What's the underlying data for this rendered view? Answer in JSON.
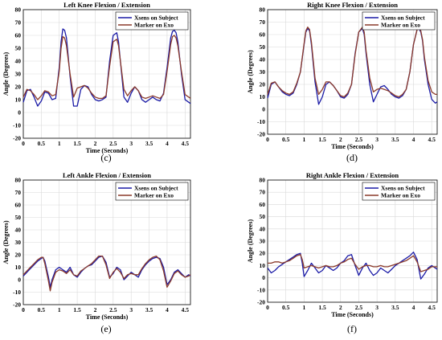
{
  "chart_data": [
    {
      "type": "line",
      "title": "Left Knee Flexion / Extension",
      "xlabel": "Time (Seconds)",
      "ylabel": "Angle (Degrees)",
      "panel": "(c)",
      "xlim": [
        0,
        4.65
      ],
      "ylim": [
        -20,
        80
      ],
      "xticks": [
        "0",
        "0.5",
        "1",
        "1.5",
        "2",
        "2.5",
        "3",
        "3.5",
        "4",
        "4.5"
      ],
      "yticks": [
        "-20",
        "-10",
        "0",
        "10",
        "20",
        "30",
        "40",
        "50",
        "60",
        "70",
        "80"
      ],
      "grid": true,
      "legend": "top-right",
      "series": [
        {
          "name": "Xsens on Subject",
          "color": "#1a1aa6",
          "x": [
            0,
            0.1,
            0.2,
            0.3,
            0.4,
            0.5,
            0.6,
            0.7,
            0.8,
            0.9,
            1.0,
            1.05,
            1.1,
            1.15,
            1.2,
            1.3,
            1.4,
            1.5,
            1.6,
            1.7,
            1.8,
            1.9,
            2.0,
            2.1,
            2.2,
            2.3,
            2.4,
            2.5,
            2.6,
            2.65,
            2.7,
            2.8,
            2.9,
            3.0,
            3.1,
            3.2,
            3.3,
            3.4,
            3.5,
            3.6,
            3.7,
            3.8,
            3.9,
            4.0,
            4.1,
            4.15,
            4.2,
            4.25,
            4.3,
            4.4,
            4.5,
            4.6,
            4.65
          ],
          "y": [
            8,
            17,
            18,
            12,
            5,
            9,
            16,
            15,
            10,
            11,
            35,
            55,
            65,
            64,
            58,
            28,
            5,
            5,
            18,
            21,
            20,
            14,
            10,
            9,
            10,
            12,
            40,
            60,
            62,
            55,
            40,
            12,
            8,
            15,
            20,
            17,
            10,
            8,
            10,
            12,
            10,
            9,
            15,
            35,
            58,
            63,
            64,
            62,
            55,
            30,
            10,
            8,
            7
          ]
        },
        {
          "name": "Marker on Exo",
          "color": "#8b3a2a",
          "x": [
            0,
            0.1,
            0.2,
            0.3,
            0.4,
            0.5,
            0.6,
            0.7,
            0.8,
            0.9,
            1.0,
            1.05,
            1.1,
            1.15,
            1.2,
            1.3,
            1.4,
            1.5,
            1.6,
            1.7,
            1.8,
            1.9,
            2.0,
            2.1,
            2.2,
            2.3,
            2.4,
            2.5,
            2.6,
            2.65,
            2.7,
            2.8,
            2.9,
            3.0,
            3.1,
            3.2,
            3.3,
            3.4,
            3.5,
            3.6,
            3.7,
            3.8,
            3.9,
            4.0,
            4.1,
            4.15,
            4.2,
            4.25,
            4.3,
            4.4,
            4.5,
            4.6,
            4.65
          ],
          "y": [
            12,
            18,
            17,
            14,
            10,
            13,
            17,
            16,
            13,
            14,
            32,
            50,
            59,
            58,
            52,
            30,
            12,
            19,
            20,
            21,
            19,
            15,
            12,
            11,
            11,
            13,
            36,
            55,
            57,
            52,
            40,
            18,
            13,
            17,
            20,
            17,
            12,
            11,
            12,
            13,
            12,
            11,
            14,
            32,
            53,
            59,
            60,
            58,
            52,
            32,
            14,
            12,
            11
          ]
        }
      ]
    },
    {
      "type": "line",
      "title": "Right Knee Flexion / Extension",
      "xlabel": "Time (Seconds)",
      "ylabel": "Angle (Degrees)",
      "panel": "(d)",
      "xlim": [
        0,
        4.65
      ],
      "ylim": [
        -20,
        80
      ],
      "xticks": [
        "0",
        "0.5",
        "1",
        "1.5",
        "2",
        "2.5",
        "3",
        "3.5",
        "4",
        "4.5"
      ],
      "yticks": [
        "-20",
        "-10",
        "0",
        "10",
        "20",
        "30",
        "40",
        "50",
        "60",
        "70",
        "80"
      ],
      "grid": true,
      "legend": "top-right",
      "series": [
        {
          "name": "Xsens on Subject",
          "color": "#1a1aa6",
          "x": [
            0,
            0.1,
            0.2,
            0.3,
            0.4,
            0.5,
            0.6,
            0.7,
            0.8,
            0.9,
            1.0,
            1.05,
            1.1,
            1.15,
            1.2,
            1.3,
            1.4,
            1.5,
            1.6,
            1.7,
            1.8,
            1.9,
            2.0,
            2.1,
            2.2,
            2.3,
            2.4,
            2.5,
            2.6,
            2.65,
            2.7,
            2.8,
            2.9,
            3.0,
            3.1,
            3.2,
            3.3,
            3.4,
            3.5,
            3.6,
            3.7,
            3.8,
            3.9,
            4.0,
            4.1,
            4.15,
            4.2,
            4.25,
            4.3,
            4.4,
            4.5,
            4.6,
            4.65
          ],
          "y": [
            9,
            20,
            22,
            18,
            14,
            12,
            11,
            13,
            20,
            30,
            52,
            62,
            65,
            63,
            52,
            22,
            4,
            10,
            20,
            22,
            19,
            15,
            10,
            9,
            12,
            20,
            45,
            62,
            65,
            60,
            45,
            20,
            6,
            12,
            18,
            19,
            16,
            12,
            10,
            9,
            11,
            16,
            30,
            52,
            64,
            65,
            62,
            55,
            40,
            20,
            8,
            5,
            6
          ]
        },
        {
          "name": "Marker on Exo",
          "color": "#8b3a2a",
          "x": [
            0,
            0.1,
            0.2,
            0.3,
            0.4,
            0.5,
            0.6,
            0.7,
            0.8,
            0.9,
            1.0,
            1.05,
            1.1,
            1.15,
            1.2,
            1.3,
            1.4,
            1.5,
            1.6,
            1.7,
            1.8,
            1.9,
            2.0,
            2.1,
            2.2,
            2.3,
            2.4,
            2.5,
            2.6,
            2.65,
            2.7,
            2.8,
            2.9,
            3.0,
            3.1,
            3.2,
            3.3,
            3.4,
            3.5,
            3.6,
            3.7,
            3.8,
            3.9,
            4.0,
            4.1,
            4.15,
            4.2,
            4.25,
            4.3,
            4.4,
            4.5,
            4.6,
            4.65
          ],
          "y": [
            12,
            21,
            22,
            18,
            15,
            13,
            12,
            14,
            21,
            30,
            53,
            63,
            66,
            64,
            54,
            25,
            12,
            16,
            22,
            22,
            19,
            15,
            11,
            10,
            13,
            20,
            44,
            62,
            66,
            62,
            47,
            25,
            14,
            16,
            17,
            16,
            15,
            13,
            11,
            10,
            12,
            16,
            30,
            52,
            64,
            66,
            63,
            56,
            42,
            23,
            14,
            12,
            12
          ]
        }
      ]
    },
    {
      "type": "line",
      "title": "Left Ankle Flexion / Extension",
      "xlabel": "Time (Seconds)",
      "ylabel": "Angle (Degrees)",
      "panel": "(e)",
      "xlim": [
        0,
        4.65
      ],
      "ylim": [
        -20,
        80
      ],
      "xticks": [
        "0",
        "0.5",
        "1",
        "1.5",
        "2",
        "2.5",
        "3",
        "3.5",
        "4",
        "4.5"
      ],
      "yticks": [
        "-20",
        "-10",
        "0",
        "10",
        "20",
        "30",
        "40",
        "50",
        "60",
        "70",
        "80"
      ],
      "grid": true,
      "legend": "top-right",
      "series": [
        {
          "name": "Xsens on Subject",
          "color": "#1a1aa6",
          "x": [
            0,
            0.1,
            0.2,
            0.3,
            0.4,
            0.5,
            0.55,
            0.6,
            0.7,
            0.75,
            0.8,
            0.9,
            1.0,
            1.1,
            1.2,
            1.3,
            1.4,
            1.5,
            1.6,
            1.7,
            1.8,
            1.9,
            2.0,
            2.1,
            2.2,
            2.3,
            2.4,
            2.5,
            2.6,
            2.7,
            2.8,
            2.9,
            3.0,
            3.1,
            3.2,
            3.3,
            3.4,
            3.5,
            3.6,
            3.7,
            3.8,
            3.9,
            4.0,
            4.1,
            4.2,
            4.3,
            4.4,
            4.5,
            4.6,
            4.65
          ],
          "y": [
            3,
            6,
            9,
            12,
            15,
            17,
            18,
            15,
            2,
            -6,
            0,
            8,
            10,
            8,
            6,
            10,
            4,
            2,
            6,
            9,
            11,
            12,
            15,
            18,
            19,
            14,
            2,
            5,
            10,
            8,
            0,
            3,
            6,
            4,
            2,
            8,
            12,
            15,
            17,
            18,
            17,
            10,
            -4,
            0,
            6,
            8,
            5,
            2,
            4,
            3
          ]
        },
        {
          "name": "Marker on Exo",
          "color": "#8b3a2a",
          "x": [
            0,
            0.1,
            0.2,
            0.3,
            0.4,
            0.5,
            0.55,
            0.6,
            0.7,
            0.75,
            0.8,
            0.9,
            1.0,
            1.1,
            1.2,
            1.3,
            1.4,
            1.5,
            1.6,
            1.7,
            1.8,
            1.9,
            2.0,
            2.1,
            2.2,
            2.3,
            2.4,
            2.5,
            2.6,
            2.7,
            2.8,
            2.9,
            3.0,
            3.1,
            3.2,
            3.3,
            3.4,
            3.5,
            3.6,
            3.7,
            3.8,
            3.9,
            4.0,
            4.1,
            4.2,
            4.3,
            4.4,
            4.5,
            4.6,
            4.65
          ],
          "y": [
            4,
            7,
            10,
            13,
            16,
            18,
            18,
            13,
            -1,
            -9,
            -2,
            6,
            8,
            7,
            5,
            8,
            4,
            3,
            7,
            9,
            11,
            13,
            16,
            19,
            19,
            12,
            1,
            6,
            9,
            6,
            1,
            4,
            5,
            4,
            4,
            9,
            13,
            16,
            18,
            19,
            16,
            7,
            -6,
            -1,
            5,
            7,
            4,
            2,
            3,
            4
          ]
        }
      ]
    },
    {
      "type": "line",
      "title": "Right Ankle Flexion / Extension",
      "xlabel": "Time (Seconds)",
      "ylabel": "Angle (Degrees)",
      "panel": "(f)",
      "xlim": [
        0,
        4.65
      ],
      "ylim": [
        -20,
        80
      ],
      "xticks": [
        "0",
        "0.5",
        "1",
        "1.5",
        "2",
        "2.5",
        "3",
        "3.5",
        "4",
        "4.5"
      ],
      "yticks": [
        "-20",
        "-10",
        "0",
        "10",
        "20",
        "30",
        "40",
        "50",
        "60",
        "70",
        "80"
      ],
      "grid": true,
      "legend": "top-right",
      "series": [
        {
          "name": "Xsens on Subject",
          "color": "#1a1aa6",
          "x": [
            0,
            0.1,
            0.2,
            0.3,
            0.4,
            0.5,
            0.6,
            0.7,
            0.8,
            0.9,
            0.95,
            1.0,
            1.1,
            1.2,
            1.3,
            1.4,
            1.5,
            1.6,
            1.7,
            1.8,
            1.9,
            2.0,
            2.1,
            2.2,
            2.3,
            2.4,
            2.5,
            2.6,
            2.7,
            2.8,
            2.9,
            3.0,
            3.1,
            3.2,
            3.3,
            3.4,
            3.5,
            3.6,
            3.7,
            3.8,
            3.9,
            4.0,
            4.1,
            4.2,
            4.3,
            4.4,
            4.5,
            4.6,
            4.65
          ],
          "y": [
            8,
            4,
            6,
            9,
            11,
            13,
            15,
            17,
            19,
            20,
            12,
            1,
            6,
            12,
            8,
            4,
            6,
            10,
            8,
            6,
            8,
            12,
            14,
            18,
            19,
            10,
            2,
            8,
            12,
            6,
            2,
            4,
            8,
            6,
            4,
            7,
            10,
            12,
            14,
            16,
            18,
            21,
            15,
            -1,
            3,
            8,
            10,
            8,
            7
          ]
        },
        {
          "name": "Marker on Exo",
          "color": "#8b3a2a",
          "x": [
            0,
            0.1,
            0.2,
            0.3,
            0.4,
            0.5,
            0.6,
            0.7,
            0.8,
            0.9,
            0.95,
            1.0,
            1.1,
            1.2,
            1.3,
            1.4,
            1.5,
            1.6,
            1.7,
            1.8,
            1.9,
            2.0,
            2.1,
            2.2,
            2.3,
            2.4,
            2.5,
            2.6,
            2.7,
            2.8,
            2.9,
            3.0,
            3.1,
            3.2,
            3.3,
            3.4,
            3.5,
            3.6,
            3.7,
            3.8,
            3.9,
            4.0,
            4.1,
            4.2,
            4.3,
            4.4,
            4.5,
            4.6,
            4.65
          ],
          "y": [
            12,
            12,
            13,
            13,
            12,
            13,
            14,
            16,
            18,
            19,
            15,
            8,
            9,
            10,
            9,
            8,
            9,
            10,
            9,
            9,
            10,
            12,
            13,
            15,
            16,
            11,
            7,
            9,
            10,
            10,
            9,
            9,
            10,
            9,
            9,
            10,
            11,
            12,
            13,
            14,
            16,
            18,
            13,
            5,
            6,
            7,
            9,
            9,
            9
          ]
        }
      ]
    }
  ]
}
